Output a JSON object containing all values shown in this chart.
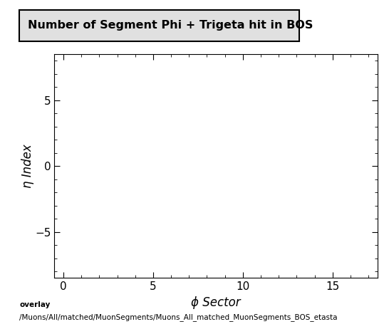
{
  "title": "Number of Segment Phi + Trigeta hit in BOS",
  "xlabel": "ϕ Sector",
  "ylabel": "η Index",
  "xlim": [
    -0.5,
    17.5
  ],
  "ylim": [
    -8.5,
    8.5
  ],
  "xticks": [
    0,
    5,
    10,
    15
  ],
  "yticks": [
    -5,
    0,
    5
  ],
  "background_color": "#ffffff",
  "plot_bg_color": "#ffffff",
  "footer_line1": "overlay",
  "footer_line2": "/Muons/All/matched/MuonSegments/Muons_All_matched_MuonSegments_BOS_etasta",
  "title_fontsize": 11.5,
  "axis_fontsize": 12,
  "tick_fontsize": 11,
  "footer_fontsize": 7.5
}
